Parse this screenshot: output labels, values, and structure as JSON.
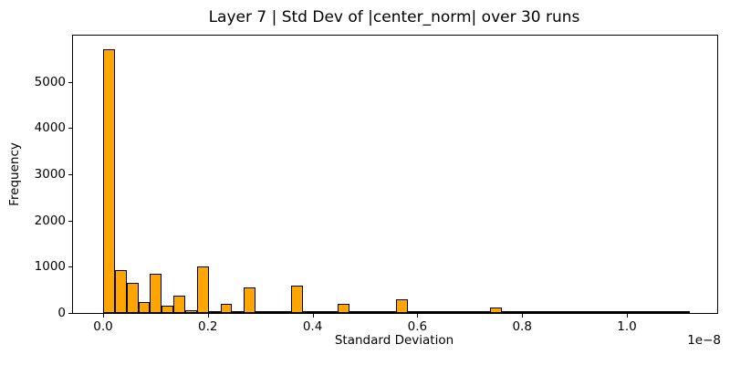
{
  "figure": {
    "background": "#FFFFFF"
  },
  "chart_data": {
    "type": "bar",
    "subtype": "histogram",
    "title": "Layer 7 | Std Dev of |center_norm| over 30 runs",
    "xlabel": "Standard Deviation",
    "ylabel": "Frequency",
    "x_offset_label": "1e−8",
    "bar_color": "#FFA500",
    "bar_edge_color": "#000000",
    "axis_color": "#000000",
    "grid": false,
    "legend": false,
    "xlim": [
      -0.0575,
      1.1725
    ],
    "ylim": [
      0,
      6000
    ],
    "x_ticks": [
      0,
      0.2,
      0.4,
      0.6,
      0.8,
      1.0
    ],
    "x_tick_labels": [
      "0.0",
      "0.2",
      "0.4",
      "0.6",
      "0.8",
      "1.0"
    ],
    "y_ticks": [
      0,
      1000,
      2000,
      3000,
      4000,
      5000
    ],
    "y_tick_labels": [
      "0",
      "1000",
      "2000",
      "3000",
      "4000",
      "5000"
    ],
    "bins": {
      "start": 0.0,
      "width": 0.0224,
      "frequencies": [
        5700,
        930,
        660,
        240,
        840,
        150,
        380,
        60,
        1000,
        45,
        190,
        40,
        560,
        8,
        5,
        12,
        600,
        35,
        6,
        5,
        200,
        5,
        25,
        25,
        45,
        290,
        4,
        3,
        3,
        30,
        3,
        2,
        2,
        120,
        2,
        2,
        2,
        2,
        2,
        2,
        2,
        40,
        2,
        2,
        2,
        2,
        2,
        2,
        2,
        2
      ]
    }
  }
}
